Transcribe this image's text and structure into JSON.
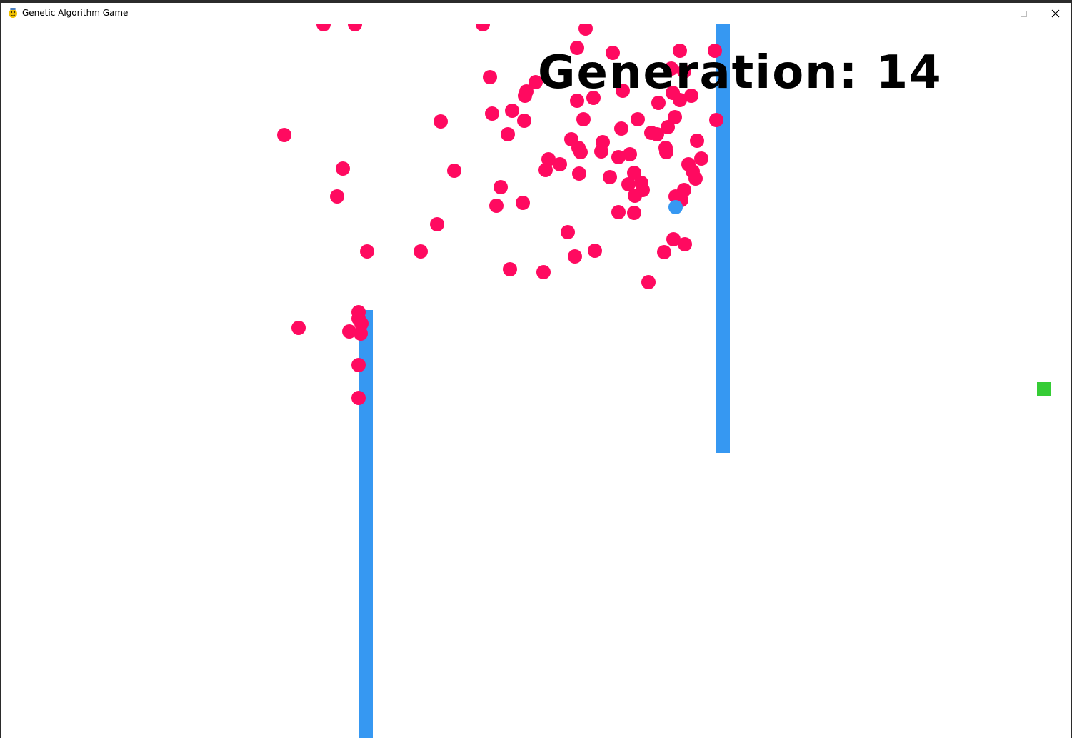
{
  "window": {
    "title": "Genetic Algorithm Game",
    "icon": "python-snake-icon"
  },
  "controls": {
    "minimize_icon": "minimize-icon",
    "maximize_icon": "maximize-icon",
    "close_icon": "close-icon"
  },
  "game": {
    "generation_label": "Generation: 14",
    "colors": {
      "background": "#ffffff",
      "population_dot": "#ff0a60",
      "best_dot": "#3698f2",
      "obstacle": "#3698f2",
      "goal": "#35cc35"
    }
  }
}
